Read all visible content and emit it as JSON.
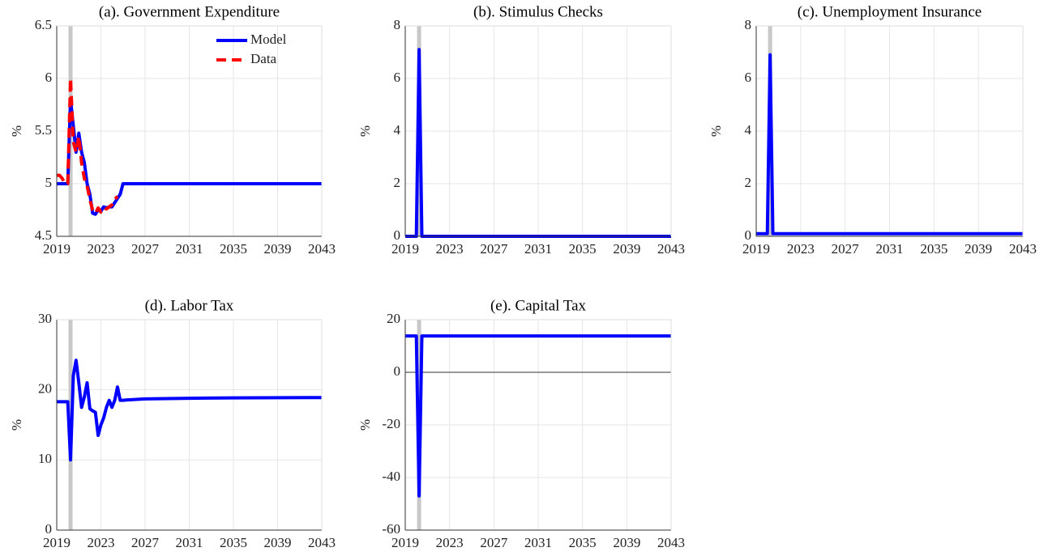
{
  "chart_data": [
    {
      "type": "line",
      "title": "(a). Government Expenditure",
      "y_label": "%",
      "x": [
        2019,
        2019.25,
        2019.5,
        2019.75,
        2020,
        2020.25,
        2020.5,
        2020.75,
        2021,
        2021.25,
        2021.5,
        2021.75,
        2022,
        2022.25,
        2022.5,
        2022.75,
        2023,
        2023.25,
        2023.5,
        2023.75,
        2024,
        2024.25,
        2024.5,
        2024.75,
        2025,
        2025.25,
        2027,
        2031,
        2035,
        2043
      ],
      "series": [
        {
          "name": "Model",
          "color": "#0000ff",
          "line_style": "solid",
          "values": [
            5.0,
            5.0,
            5.0,
            5.0,
            5.0,
            5.8,
            5.55,
            5.3,
            5.48,
            5.3,
            5.2,
            5.0,
            4.9,
            4.72,
            4.71,
            4.75,
            4.74,
            4.78,
            4.77,
            4.78,
            4.78,
            4.82,
            4.86,
            4.9,
            5.0,
            5.0,
            5.0,
            5.0,
            5.0,
            5.0
          ]
        },
        {
          "name": "Data",
          "color": "#ff0000",
          "line_style": "dashed",
          "values": [
            5.08,
            5.08,
            5.05,
            5.0,
            5.0,
            6.0,
            5.4,
            5.3,
            5.45,
            5.2,
            5.05,
            4.98,
            4.85,
            4.75,
            4.72,
            4.77,
            4.73,
            4.77,
            4.76,
            4.78,
            4.8,
            4.85,
            4.88,
            null,
            null,
            null,
            null,
            null,
            null,
            null
          ]
        }
      ],
      "xlim": [
        2019,
        2043
      ],
      "xticks": [
        2019,
        2023,
        2027,
        2031,
        2035,
        2039,
        2043
      ],
      "ylim": [
        4.5,
        6.5
      ],
      "yticks": [
        4.5,
        5,
        5.5,
        6,
        6.5
      ],
      "highlight_x": 2020.25,
      "grid": true,
      "legend": "northeast"
    },
    {
      "type": "line",
      "title": "(b). Stimulus Checks",
      "y_label": "%",
      "x": [
        2019,
        2019.25,
        2019.5,
        2019.75,
        2020,
        2020.25,
        2020.5,
        2020.75,
        2021,
        2043
      ],
      "series": [
        {
          "color": "#0000ff",
          "line_style": "solid",
          "values": [
            0,
            0,
            0,
            0,
            0,
            7.1,
            0,
            0,
            0,
            0
          ]
        }
      ],
      "xlim": [
        2019,
        2043
      ],
      "xticks": [
        2019,
        2023,
        2027,
        2031,
        2035,
        2039,
        2043
      ],
      "ylim": [
        0,
        8
      ],
      "yticks": [
        0,
        2,
        4,
        6,
        8
      ],
      "highlight_x": 2020.25,
      "grid": true
    },
    {
      "type": "line",
      "title": "(c). Unemployment Insurance",
      "y_label": "%",
      "x": [
        2019,
        2019.25,
        2019.5,
        2019.75,
        2020,
        2020.25,
        2020.5,
        2020.75,
        2021,
        2043
      ],
      "series": [
        {
          "color": "#0000ff",
          "line_style": "solid",
          "values": [
            0.1,
            0.1,
            0.1,
            0.1,
            0.1,
            6.9,
            0.1,
            0.1,
            0.1,
            0.1
          ]
        }
      ],
      "xlim": [
        2019,
        2043
      ],
      "xticks": [
        2019,
        2023,
        2027,
        2031,
        2035,
        2039,
        2043
      ],
      "ylim": [
        0,
        8
      ],
      "yticks": [
        0,
        2,
        4,
        6,
        8
      ],
      "highlight_x": 2020.25,
      "grid": true
    },
    {
      "type": "line",
      "title": "(d). Labor Tax",
      "y_label": "%",
      "x": [
        2019,
        2019.25,
        2019.5,
        2019.75,
        2020,
        2020.25,
        2020.5,
        2020.75,
        2021,
        2021.25,
        2021.5,
        2021.75,
        2022,
        2022.25,
        2022.5,
        2022.75,
        2023,
        2023.25,
        2023.5,
        2023.75,
        2024,
        2024.25,
        2024.5,
        2024.75,
        2025,
        2025.25,
        2027,
        2031,
        2035,
        2043
      ],
      "series": [
        {
          "color": "#0000ff",
          "line_style": "solid",
          "values": [
            18.3,
            18.3,
            18.3,
            18.3,
            18.3,
            10.0,
            22.0,
            24.2,
            21.0,
            17.5,
            19.0,
            21.0,
            17.3,
            17.0,
            16.8,
            13.5,
            15.0,
            16.0,
            17.5,
            18.5,
            17.5,
            18.5,
            20.4,
            18.5,
            18.5,
            18.55,
            18.7,
            18.8,
            18.85,
            18.9
          ]
        }
      ],
      "xlim": [
        2019,
        2043
      ],
      "xticks": [
        2019,
        2023,
        2027,
        2031,
        2035,
        2039,
        2043
      ],
      "ylim": [
        0,
        30
      ],
      "yticks": [
        0,
        10,
        20,
        30
      ],
      "highlight_x": 2020.25,
      "grid": true
    },
    {
      "type": "line",
      "title": "(e). Capital Tax",
      "y_label": "%",
      "x": [
        2019,
        2019.25,
        2019.5,
        2019.75,
        2020,
        2020.25,
        2020.5,
        2020.75,
        2021,
        2043
      ],
      "series": [
        {
          "color": "#0000ff",
          "line_style": "solid",
          "values": [
            13.8,
            13.8,
            13.8,
            13.8,
            13.8,
            -47,
            13.8,
            13.8,
            13.8,
            13.8
          ]
        }
      ],
      "xlim": [
        2019,
        2043
      ],
      "xticks": [
        2019,
        2023,
        2027,
        2031,
        2035,
        2039,
        2043
      ],
      "ylim": [
        -60,
        20
      ],
      "yticks": [
        -60,
        -40,
        -20,
        0,
        20
      ],
      "highlight_x": 2020.25,
      "grid": true,
      "zero_line": true
    }
  ]
}
